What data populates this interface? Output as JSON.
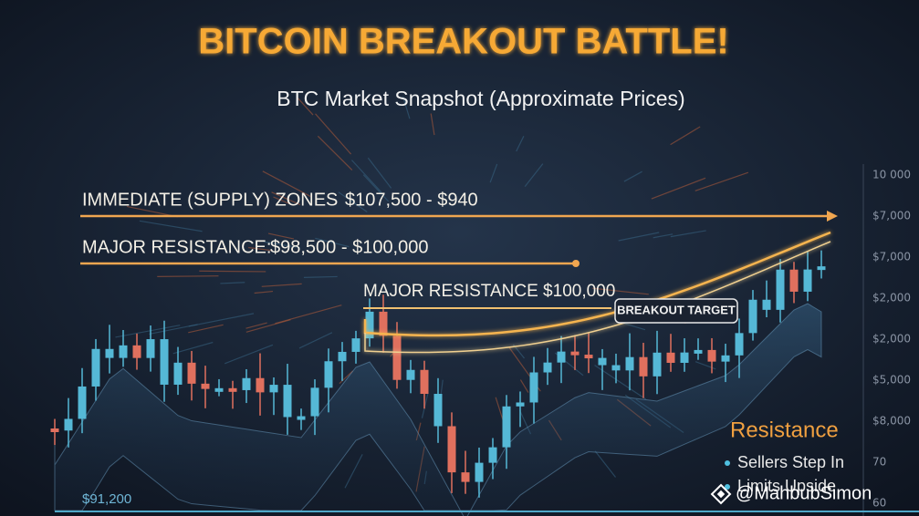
{
  "title": "BITCOIN BREAKOUT BATTLE!",
  "subtitle": "BTC Market Snapshot (Approximate Prices)",
  "zones": [
    {
      "label": "IMMEDIATE (SUPPLY) ZONES",
      "range": "$107,500 - $940"
    },
    {
      "label": "MAJOR RESISTANCE:",
      "range": "$98,500 - $100,000"
    }
  ],
  "resistance_label": "MAJOR RESISTANCE $100,000",
  "breakout_label": "BREAKOUT TARGET",
  "axis_labels": [
    "10 000",
    "$7,000",
    "$7,000",
    "$2,000",
    "$2,000",
    "$5,000",
    "$8,000",
    "70",
    "60"
  ],
  "legend": {
    "title": "Resistance",
    "items": [
      "Sellers Step In",
      "Limits Upside"
    ]
  },
  "price_label": "$91,200",
  "watermark": "@MahbubSimon"
}
